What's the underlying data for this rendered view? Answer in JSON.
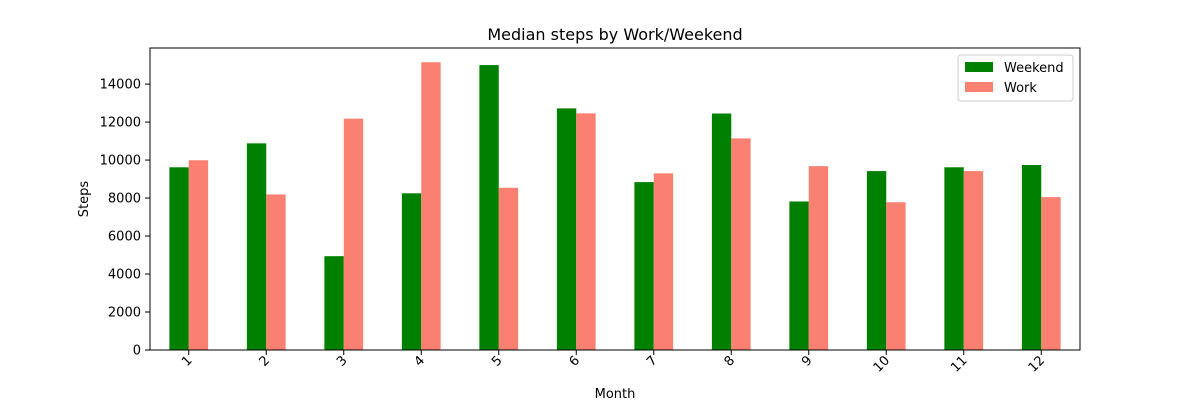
{
  "chart_data": {
    "type": "bar",
    "title": "Median steps by Work/Weekend",
    "xlabel": "Month",
    "ylabel": "Steps",
    "categories": [
      "1",
      "2",
      "3",
      "4",
      "5",
      "6",
      "7",
      "8",
      "9",
      "10",
      "11",
      "12"
    ],
    "series": [
      {
        "name": "Weekend",
        "color": "#008000",
        "values": [
          9620,
          10880,
          4940,
          8250,
          15000,
          12720,
          8840,
          12450,
          7820,
          9420,
          9620,
          9740
        ]
      },
      {
        "name": "Work",
        "color": "#fa8072",
        "values": [
          9990,
          8190,
          12180,
          15150,
          8540,
          12460,
          9300,
          11140,
          9680,
          7780,
          9420,
          8050
        ]
      }
    ],
    "ylim": [
      0,
      15900
    ],
    "yticks": [
      0,
      2000,
      4000,
      6000,
      8000,
      10000,
      12000,
      14000
    ],
    "grid": false,
    "legend_position": "top-right"
  }
}
